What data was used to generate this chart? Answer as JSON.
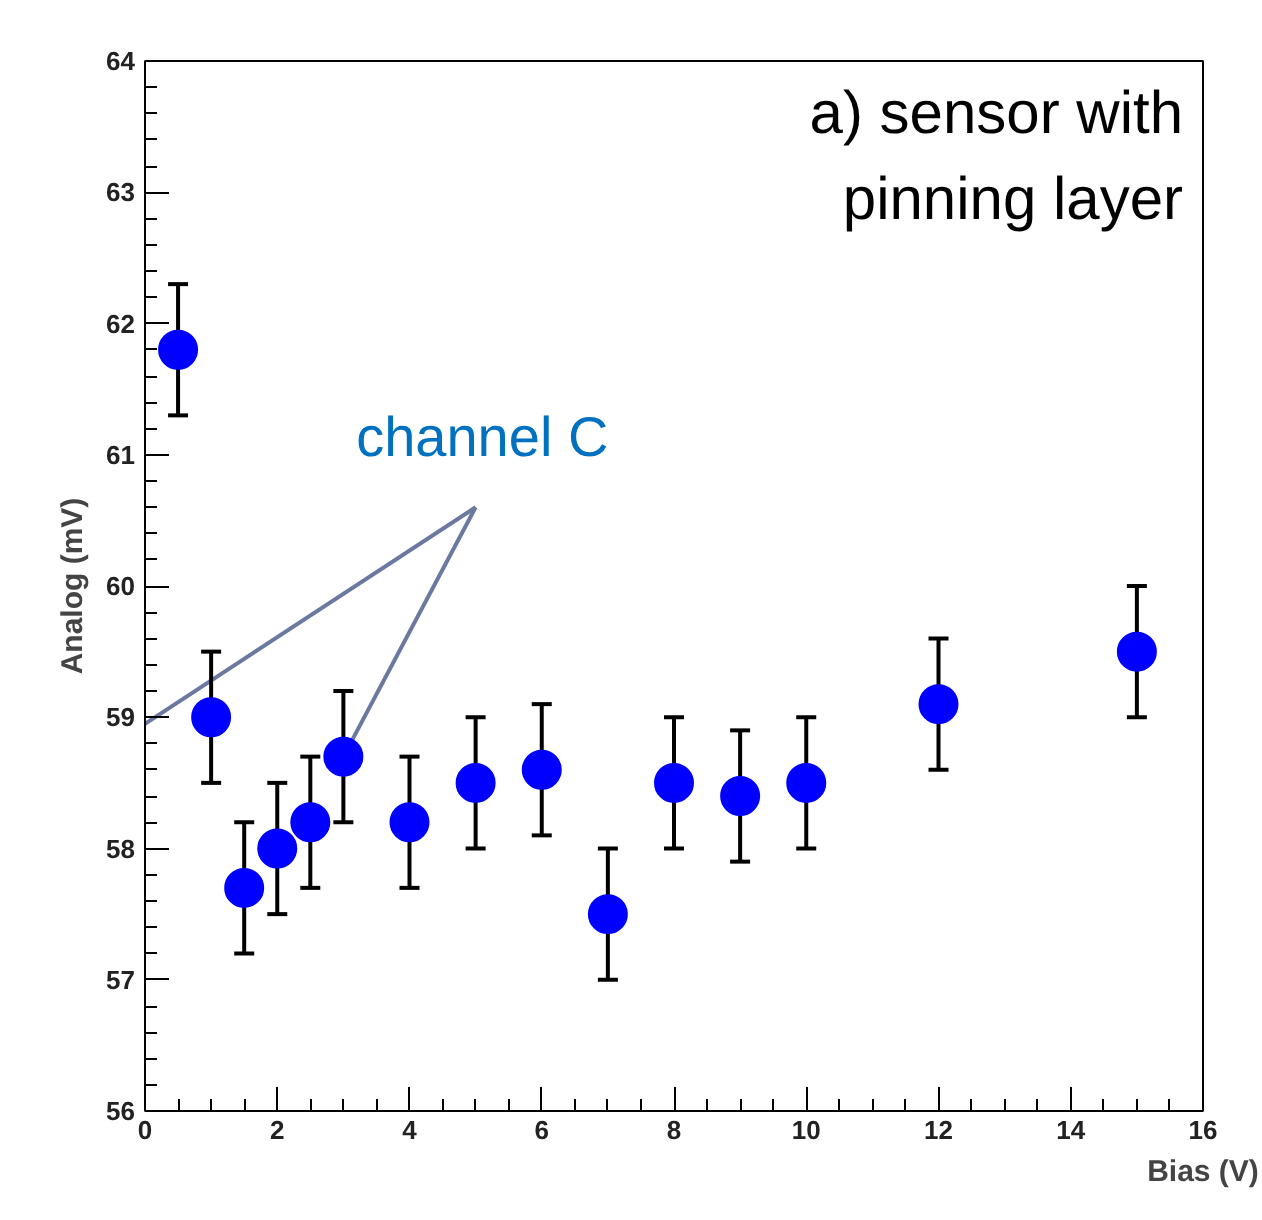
{
  "chart_data": {
    "type": "scatter",
    "xlabel": "Bias (V)",
    "ylabel": "Analog (mV)",
    "x": [
      0.5,
      1,
      1.5,
      2,
      2.5,
      3,
      4,
      5,
      6,
      7,
      8,
      9,
      10,
      12,
      15
    ],
    "series": [
      {
        "color": "#0000ff",
        "values": [
          61.8,
          59.0,
          57.7,
          58.0,
          58.2,
          58.7,
          58.2,
          58.5,
          58.6,
          57.5,
          58.5,
          58.4,
          58.5,
          59.1,
          59.5
        ],
        "errors": [
          0.5,
          0.5,
          0.5,
          0.5,
          0.5,
          0.5,
          0.5,
          0.5,
          0.5,
          0.5,
          0.5,
          0.5,
          0.5,
          0.5,
          0.5
        ]
      }
    ],
    "xlim": [
      0,
      16
    ],
    "ylim": [
      56,
      64
    ],
    "xticks": [
      0,
      2,
      4,
      6,
      8,
      10,
      12,
      14,
      16
    ],
    "yticks": [
      56,
      57,
      58,
      59,
      60,
      61,
      62,
      63,
      64
    ],
    "grid": false,
    "marker": "circle",
    "annotations": [
      "a) sensor with\npinning layer",
      {
        "text": "channel C",
        "x": 3,
        "y": 58.7
      }
    ]
  }
}
